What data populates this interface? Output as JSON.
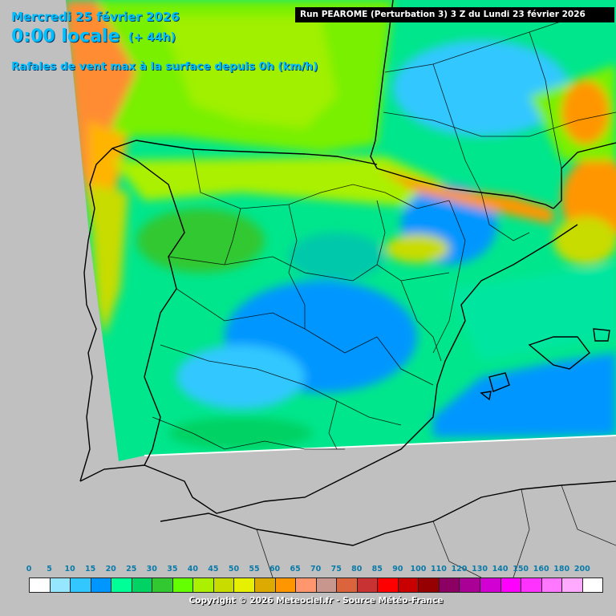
{
  "header": {
    "date": "Mercredi 25 février 2026",
    "time": "0:00 locale",
    "offset": "(+ 44h)",
    "parameter": "Rafales de vent max à la surface depuis 0h (km/h)",
    "run": "Run PEAROME (Perturbation 3) 3 Z du Lundi 23 février 2026"
  },
  "legend": {
    "ticks": [
      "0",
      "5",
      "10",
      "15",
      "20",
      "25",
      "30",
      "35",
      "40",
      "45",
      "50",
      "55",
      "60",
      "65",
      "70",
      "75",
      "80",
      "85",
      "90",
      "100",
      "110",
      "120",
      "130",
      "140",
      "150",
      "160",
      "180",
      "200"
    ],
    "colors": [
      "#ffffff",
      "#96e6ff",
      "#32c8ff",
      "#0096ff",
      "#00ff96",
      "#00d264",
      "#32c832",
      "#64ff00",
      "#aaf000",
      "#c8dc00",
      "#e6f000",
      "#dcaa00",
      "#ff9600",
      "#ff966e",
      "#c8968c",
      "#dc643c",
      "#c83232",
      "#ff0000",
      "#c80000",
      "#960000",
      "#8c0064",
      "#aa0096",
      "#d200d2",
      "#ff00ff",
      "#ff32ff",
      "#ff78ff",
      "#ffaaff",
      "#ffffff"
    ]
  },
  "copyright": "Copyright © 2026 Meteociel.fr - Source Météo-France"
}
